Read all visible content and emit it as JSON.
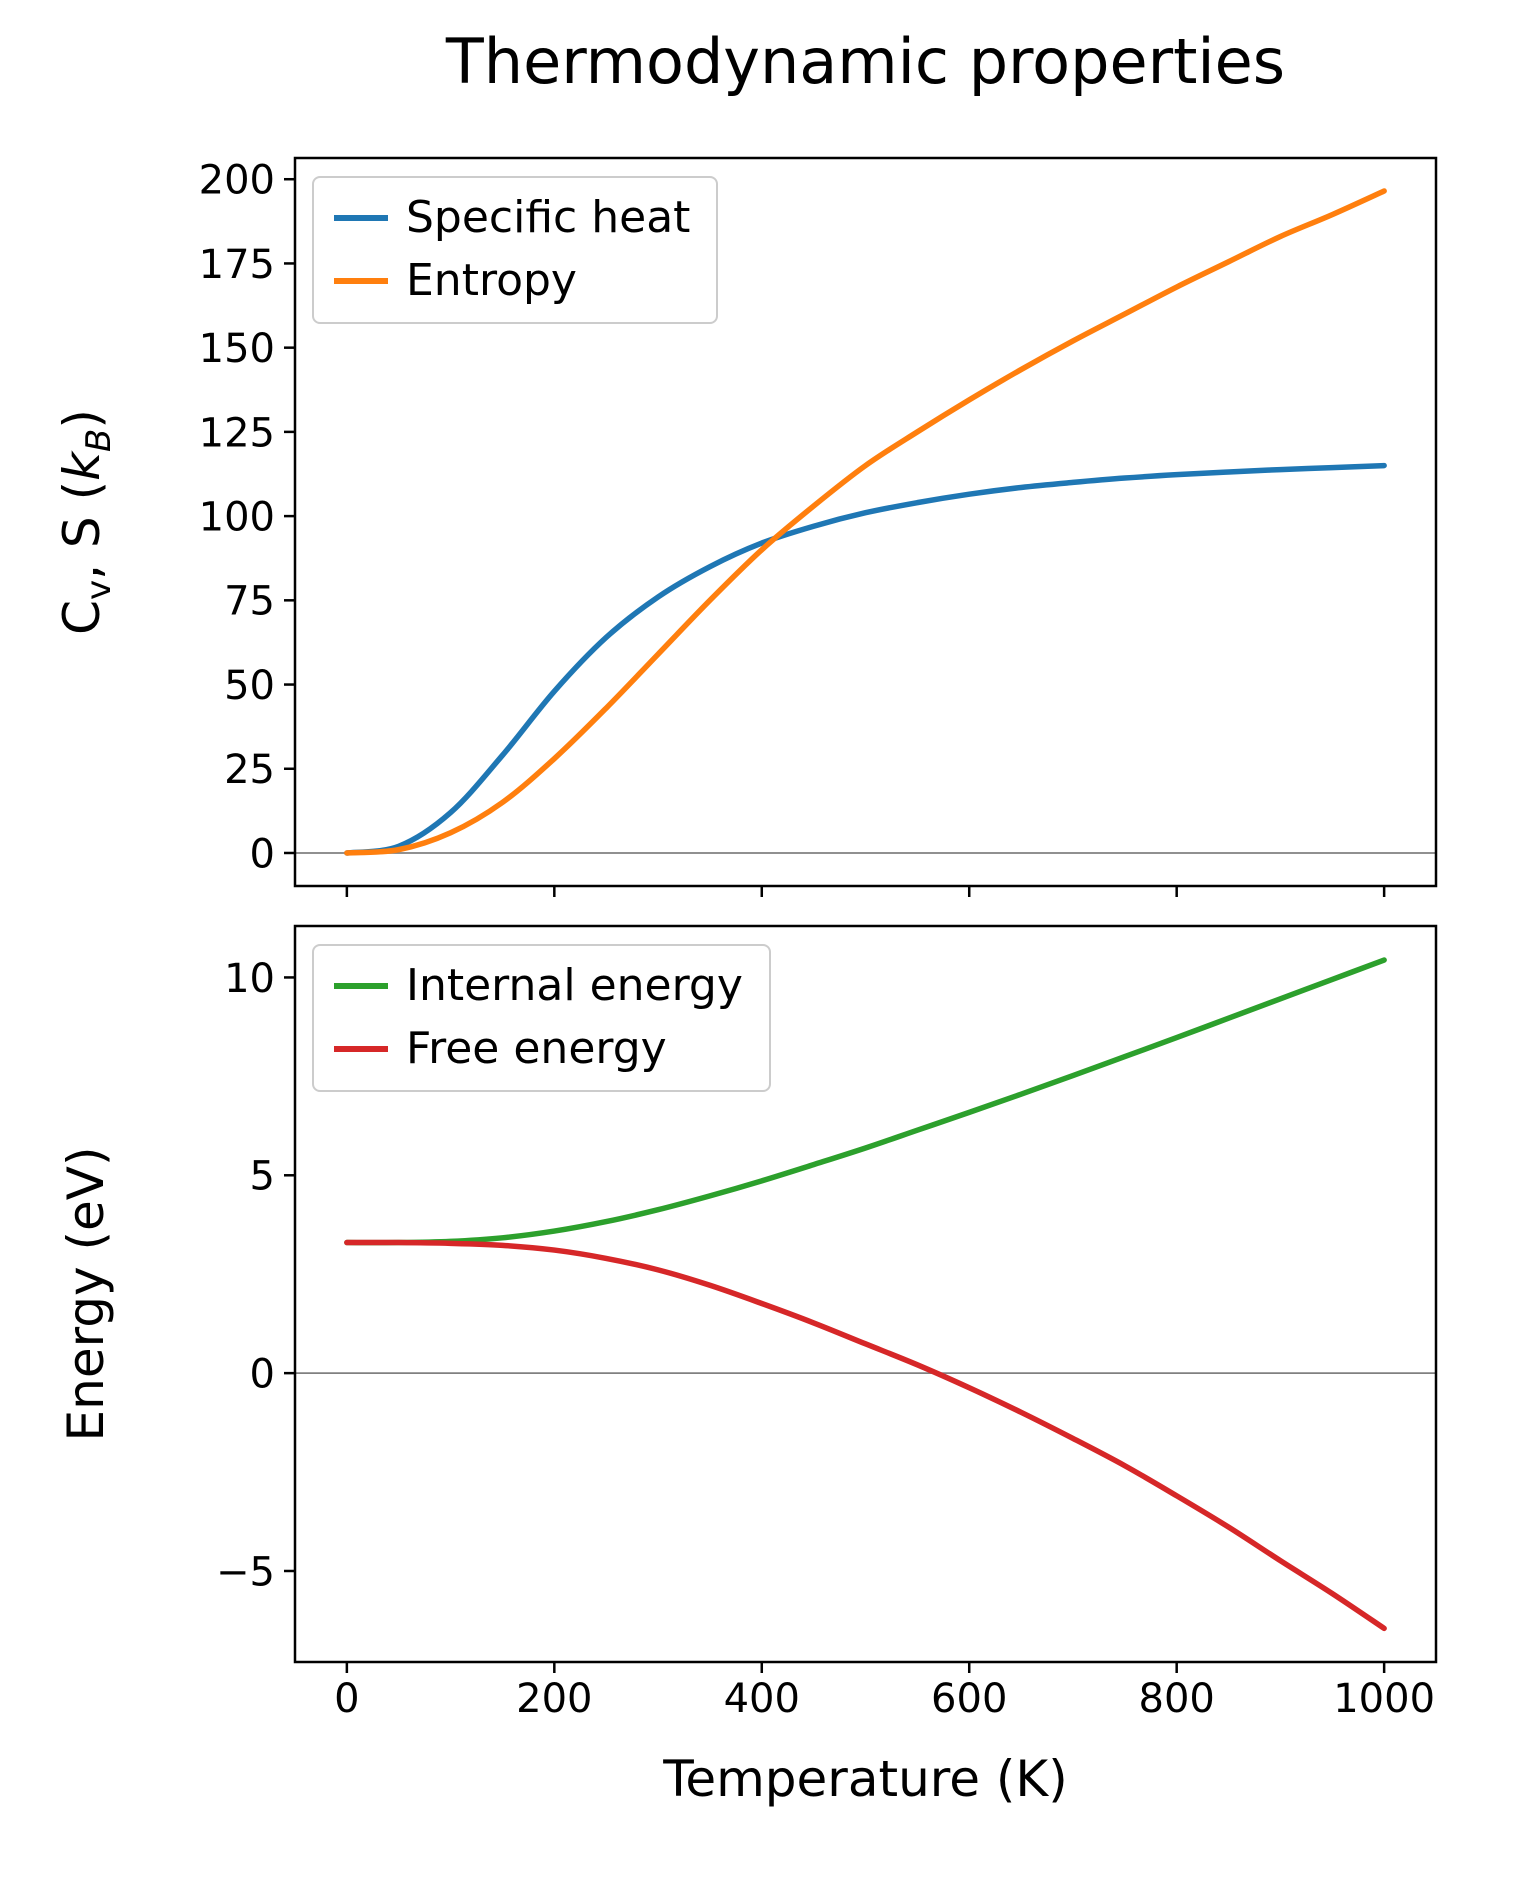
{
  "title": "Thermodynamic properties",
  "chart_data": [
    {
      "type": "line",
      "title": "",
      "ylabel_plain": "Cv, S (kB)",
      "ylabel_rich": {
        "p1": "C",
        "p2": "v",
        "p3": ", S (",
        "p4": "k",
        "p5": "B",
        "p6": ")"
      },
      "x": [
        0,
        50,
        100,
        150,
        200,
        250,
        300,
        350,
        400,
        450,
        500,
        550,
        600,
        650,
        700,
        750,
        800,
        850,
        900,
        950,
        1000
      ],
      "xlim": [
        -50,
        1050
      ],
      "xticks": [
        0,
        200,
        400,
        600,
        800,
        1000
      ],
      "x_tick_labels": false,
      "ylim": [
        -9.8,
        206.3
      ],
      "yticks": [
        0,
        25,
        50,
        75,
        100,
        125,
        150,
        175,
        200
      ],
      "zero_line": true,
      "grid": false,
      "legend_position": "upper left",
      "series": [
        {
          "name": "Specific heat",
          "color": "#1f77b4",
          "values": [
            0,
            2,
            12,
            29,
            48,
            64,
            76,
            85,
            92,
            97,
            101,
            104,
            106.5,
            108.5,
            110,
            111.3,
            112.3,
            113.1,
            113.8,
            114.4,
            115
          ]
        },
        {
          "name": "Entropy",
          "color": "#ff7f0e",
          "values": [
            0,
            1,
            6,
            15,
            28,
            43,
            59,
            75,
            90,
            103,
            115,
            125,
            134.5,
            143.5,
            152,
            160,
            168,
            175.5,
            183,
            189.5,
            196.5
          ]
        }
      ]
    },
    {
      "type": "line",
      "title": "",
      "ylabel": "Energy (eV)",
      "xlabel": "Temperature (K)",
      "x": [
        0,
        50,
        100,
        150,
        200,
        250,
        300,
        350,
        400,
        450,
        500,
        550,
        600,
        650,
        700,
        750,
        800,
        850,
        900,
        950,
        1000
      ],
      "xlim": [
        -50,
        1050
      ],
      "xticks": [
        0,
        200,
        400,
        600,
        800,
        1000
      ],
      "x_tick_labels": true,
      "ylim": [
        -7.3,
        11.3
      ],
      "yticks": [
        -5,
        0,
        5,
        10
      ],
      "zero_line": true,
      "grid": false,
      "legend_position": "upper left",
      "series": [
        {
          "name": "Internal energy",
          "color": "#2ca02c",
          "values": [
            3.3,
            3.3,
            3.33,
            3.42,
            3.59,
            3.83,
            4.13,
            4.48,
            4.86,
            5.27,
            5.69,
            6.14,
            6.59,
            7.05,
            7.52,
            8.0,
            8.48,
            8.97,
            9.46,
            9.95,
            10.44
          ]
        },
        {
          "name": "Free energy",
          "color": "#d62728",
          "values": [
            3.3,
            3.3,
            3.28,
            3.23,
            3.11,
            2.9,
            2.61,
            2.22,
            1.76,
            1.27,
            0.74,
            0.21,
            -0.37,
            -0.99,
            -1.65,
            -2.34,
            -3.1,
            -3.89,
            -4.74,
            -5.57,
            -6.45
          ]
        }
      ]
    }
  ]
}
